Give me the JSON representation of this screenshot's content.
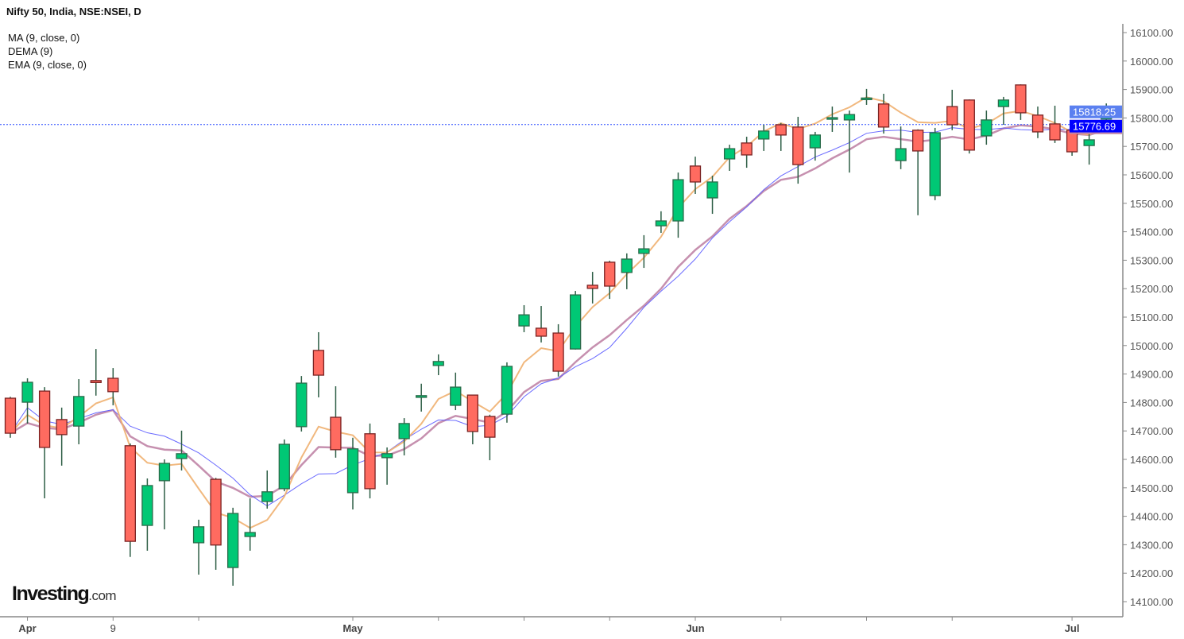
{
  "chart_data": {
    "type": "candlestick",
    "title": "Nifty 50, India, NSE:NSEI, D",
    "indicators": [
      {
        "name": "MA (9, close, 0)",
        "color": "#5a5aff"
      },
      {
        "name": "DEMA (9)",
        "color": "#f0b070"
      },
      {
        "name": "EMA (9, close, 0)",
        "color": "#c084a6"
      }
    ],
    "ylim": [
      14050,
      16150
    ],
    "y_ticks": [
      "14100.00",
      "14200.00",
      "14300.00",
      "14400.00",
      "14500.00",
      "14600.00",
      "14700.00",
      "14800.00",
      "14900.00",
      "15000.00",
      "15100.00",
      "15200.00",
      "15300.00",
      "15400.00",
      "15500.00",
      "15600.00",
      "15700.00",
      "15800.00",
      "15900.00",
      "16000.00",
      "16100.00"
    ],
    "x_ticks": [
      {
        "label": "Apr",
        "candle": 1,
        "bold": true
      },
      {
        "label": "9",
        "candle": 6,
        "bold": false
      },
      {
        "label": "",
        "candle": 11
      },
      {
        "label": "May",
        "candle": 20,
        "bold": true
      },
      {
        "label": "",
        "candle": 25
      },
      {
        "label": "",
        "candle": 30
      },
      {
        "label": "",
        "candle": 35
      },
      {
        "label": "Jun",
        "candle": 40,
        "bold": true
      },
      {
        "label": "",
        "candle": 45
      },
      {
        "label": "",
        "candle": 50
      },
      {
        "label": "",
        "candle": 55
      },
      {
        "label": "Jul",
        "candle": 62,
        "bold": true
      }
    ],
    "candles_ohlc": [
      [
        14815,
        14820,
        14676,
        14692
      ],
      [
        14801,
        14885,
        14726,
        14871
      ],
      [
        14840,
        14854,
        14463,
        14642
      ],
      [
        14740,
        14782,
        14578,
        14687
      ],
      [
        14717,
        14882,
        14653,
        14821
      ],
      [
        14877,
        14988,
        14824,
        14870
      ],
      [
        14885,
        14921,
        14790,
        14838
      ],
      [
        14648,
        14656,
        14257,
        14312
      ],
      [
        14368,
        14533,
        14279,
        14508
      ],
      [
        14525,
        14600,
        14354,
        14586
      ],
      [
        14603,
        14701,
        14561,
        14620
      ],
      [
        14307,
        14388,
        14195,
        14363
      ],
      [
        14530,
        14535,
        14212,
        14299
      ],
      [
        14220,
        14430,
        14156,
        14410
      ],
      [
        14329,
        14463,
        14279,
        14343
      ],
      [
        14452,
        14561,
        14427,
        14486
      ],
      [
        14497,
        14670,
        14488,
        14653
      ],
      [
        14715,
        14893,
        14698,
        14868
      ],
      [
        14983,
        15047,
        14818,
        14896
      ],
      [
        14748,
        14857,
        14606,
        14634
      ],
      [
        14483,
        14676,
        14424,
        14637
      ],
      [
        14690,
        14726,
        14463,
        14497
      ],
      [
        14606,
        14642,
        14511,
        14620
      ],
      [
        14673,
        14745,
        14614,
        14726
      ],
      [
        14818,
        14866,
        14768,
        14824
      ],
      [
        14930,
        14969,
        14896,
        14944
      ],
      [
        14790,
        14905,
        14773,
        14854
      ],
      [
        14826,
        14826,
        14653,
        14698
      ],
      [
        14751,
        14757,
        14597,
        14678
      ],
      [
        14759,
        14941,
        14729,
        14927
      ],
      [
        15069,
        15142,
        15047,
        15108
      ],
      [
        15061,
        15139,
        15011,
        15033
      ],
      [
        15044,
        15075,
        14891,
        14910
      ],
      [
        14988,
        15192,
        14986,
        15178
      ],
      [
        15212,
        15259,
        15148,
        15201
      ],
      [
        15293,
        15298,
        15164,
        15209
      ],
      [
        15257,
        15324,
        15198,
        15304
      ],
      [
        15324,
        15388,
        15273,
        15340
      ],
      [
        15421,
        15472,
        15396,
        15438
      ],
      [
        15438,
        15608,
        15379,
        15583
      ],
      [
        15631,
        15664,
        15533,
        15575
      ],
      [
        15519,
        15597,
        15463,
        15575
      ],
      [
        15656,
        15706,
        15614,
        15692
      ],
      [
        15712,
        15734,
        15625,
        15670
      ],
      [
        15726,
        15776,
        15684,
        15754
      ],
      [
        15776,
        15782,
        15684,
        15740
      ],
      [
        15768,
        15804,
        15569,
        15636
      ],
      [
        15695,
        15751,
        15650,
        15740
      ],
      [
        15796,
        15840,
        15751,
        15801
      ],
      [
        15793,
        15826,
        15608,
        15812
      ],
      [
        15866,
        15902,
        15846,
        15870
      ],
      [
        15849,
        15885,
        15745,
        15768
      ],
      [
        15650,
        15770,
        15620,
        15692
      ],
      [
        15757,
        15760,
        15458,
        15684
      ],
      [
        15527,
        15765,
        15511,
        15748
      ],
      [
        15840,
        15899,
        15757,
        15776
      ],
      [
        15863,
        15865,
        15675,
        15687
      ],
      [
        15737,
        15826,
        15706,
        15793
      ],
      [
        15840,
        15874,
        15776,
        15863
      ],
      [
        15916,
        15918,
        15793,
        15818
      ],
      [
        15810,
        15840,
        15729,
        15751
      ],
      [
        15779,
        15843,
        15712,
        15723
      ],
      [
        15757,
        15760,
        15667,
        15681
      ],
      [
        15703,
        15743,
        15636,
        15723
      ],
      [
        15796,
        15851,
        15773,
        15835
      ],
      [
        15815,
        15821,
        15815,
        15818.25
      ]
    ],
    "price_labels": [
      {
        "value": "15818.25",
        "color": "#5b80f0"
      },
      {
        "value": "15776.69",
        "color": "#0000ff"
      }
    ],
    "colors": {
      "up": "#00c875",
      "down": "#ff6b60",
      "up_border": "#2a6b4a",
      "down_border": "#7a2323",
      "wick": "#2d5e45"
    },
    "grid": false
  },
  "logo": {
    "main": "Investing",
    "suffix": ".com"
  }
}
